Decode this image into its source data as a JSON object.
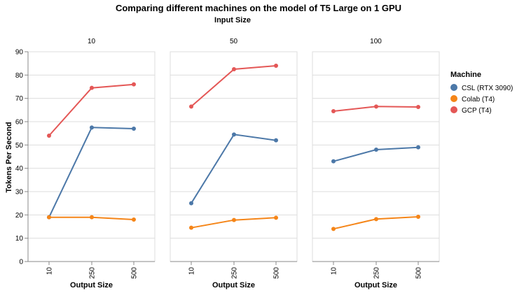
{
  "chart_data": {
    "type": "line",
    "title": "Comparing different machines on the model of T5 Large on 1 GPU",
    "facet_title": "Input Size",
    "xlabel": "Output Size",
    "ylabel": "Tokens Per Second",
    "ylim": [
      0,
      90
    ],
    "yticks": [
      "0",
      "10",
      "20",
      "30",
      "40",
      "50",
      "60",
      "70",
      "80",
      "90"
    ],
    "categories": [
      "10",
      "250",
      "500"
    ],
    "grid": true,
    "legend": {
      "title": "Machine",
      "placement": "right"
    },
    "series_meta": [
      {
        "name": "CSL (RTX 3090)",
        "color": "#4c78a8"
      },
      {
        "name": "Colab (T4)",
        "color": "#f58518"
      },
      {
        "name": "GCP (T4)",
        "color": "#e45756"
      }
    ],
    "facets": [
      {
        "label": "10",
        "series": [
          {
            "name": "CSL (RTX 3090)",
            "values": [
              19,
              57.5,
              57
            ]
          },
          {
            "name": "Colab (T4)",
            "values": [
              19,
              19,
              18
            ]
          },
          {
            "name": "GCP (T4)",
            "values": [
              54,
              74.5,
              76
            ]
          }
        ]
      },
      {
        "label": "50",
        "series": [
          {
            "name": "CSL (RTX 3090)",
            "values": [
              25,
              54.5,
              52
            ]
          },
          {
            "name": "Colab (T4)",
            "values": [
              14.5,
              17.8,
              18.8
            ]
          },
          {
            "name": "GCP (T4)",
            "values": [
              66.5,
              82.5,
              84
            ]
          }
        ]
      },
      {
        "label": "100",
        "series": [
          {
            "name": "CSL (RTX 3090)",
            "values": [
              43,
              48,
              49
            ]
          },
          {
            "name": "Colab (T4)",
            "values": [
              14,
              18.2,
              19.2
            ]
          },
          {
            "name": "GCP (T4)",
            "values": [
              64.5,
              66.5,
              66.3
            ]
          }
        ]
      }
    ]
  }
}
